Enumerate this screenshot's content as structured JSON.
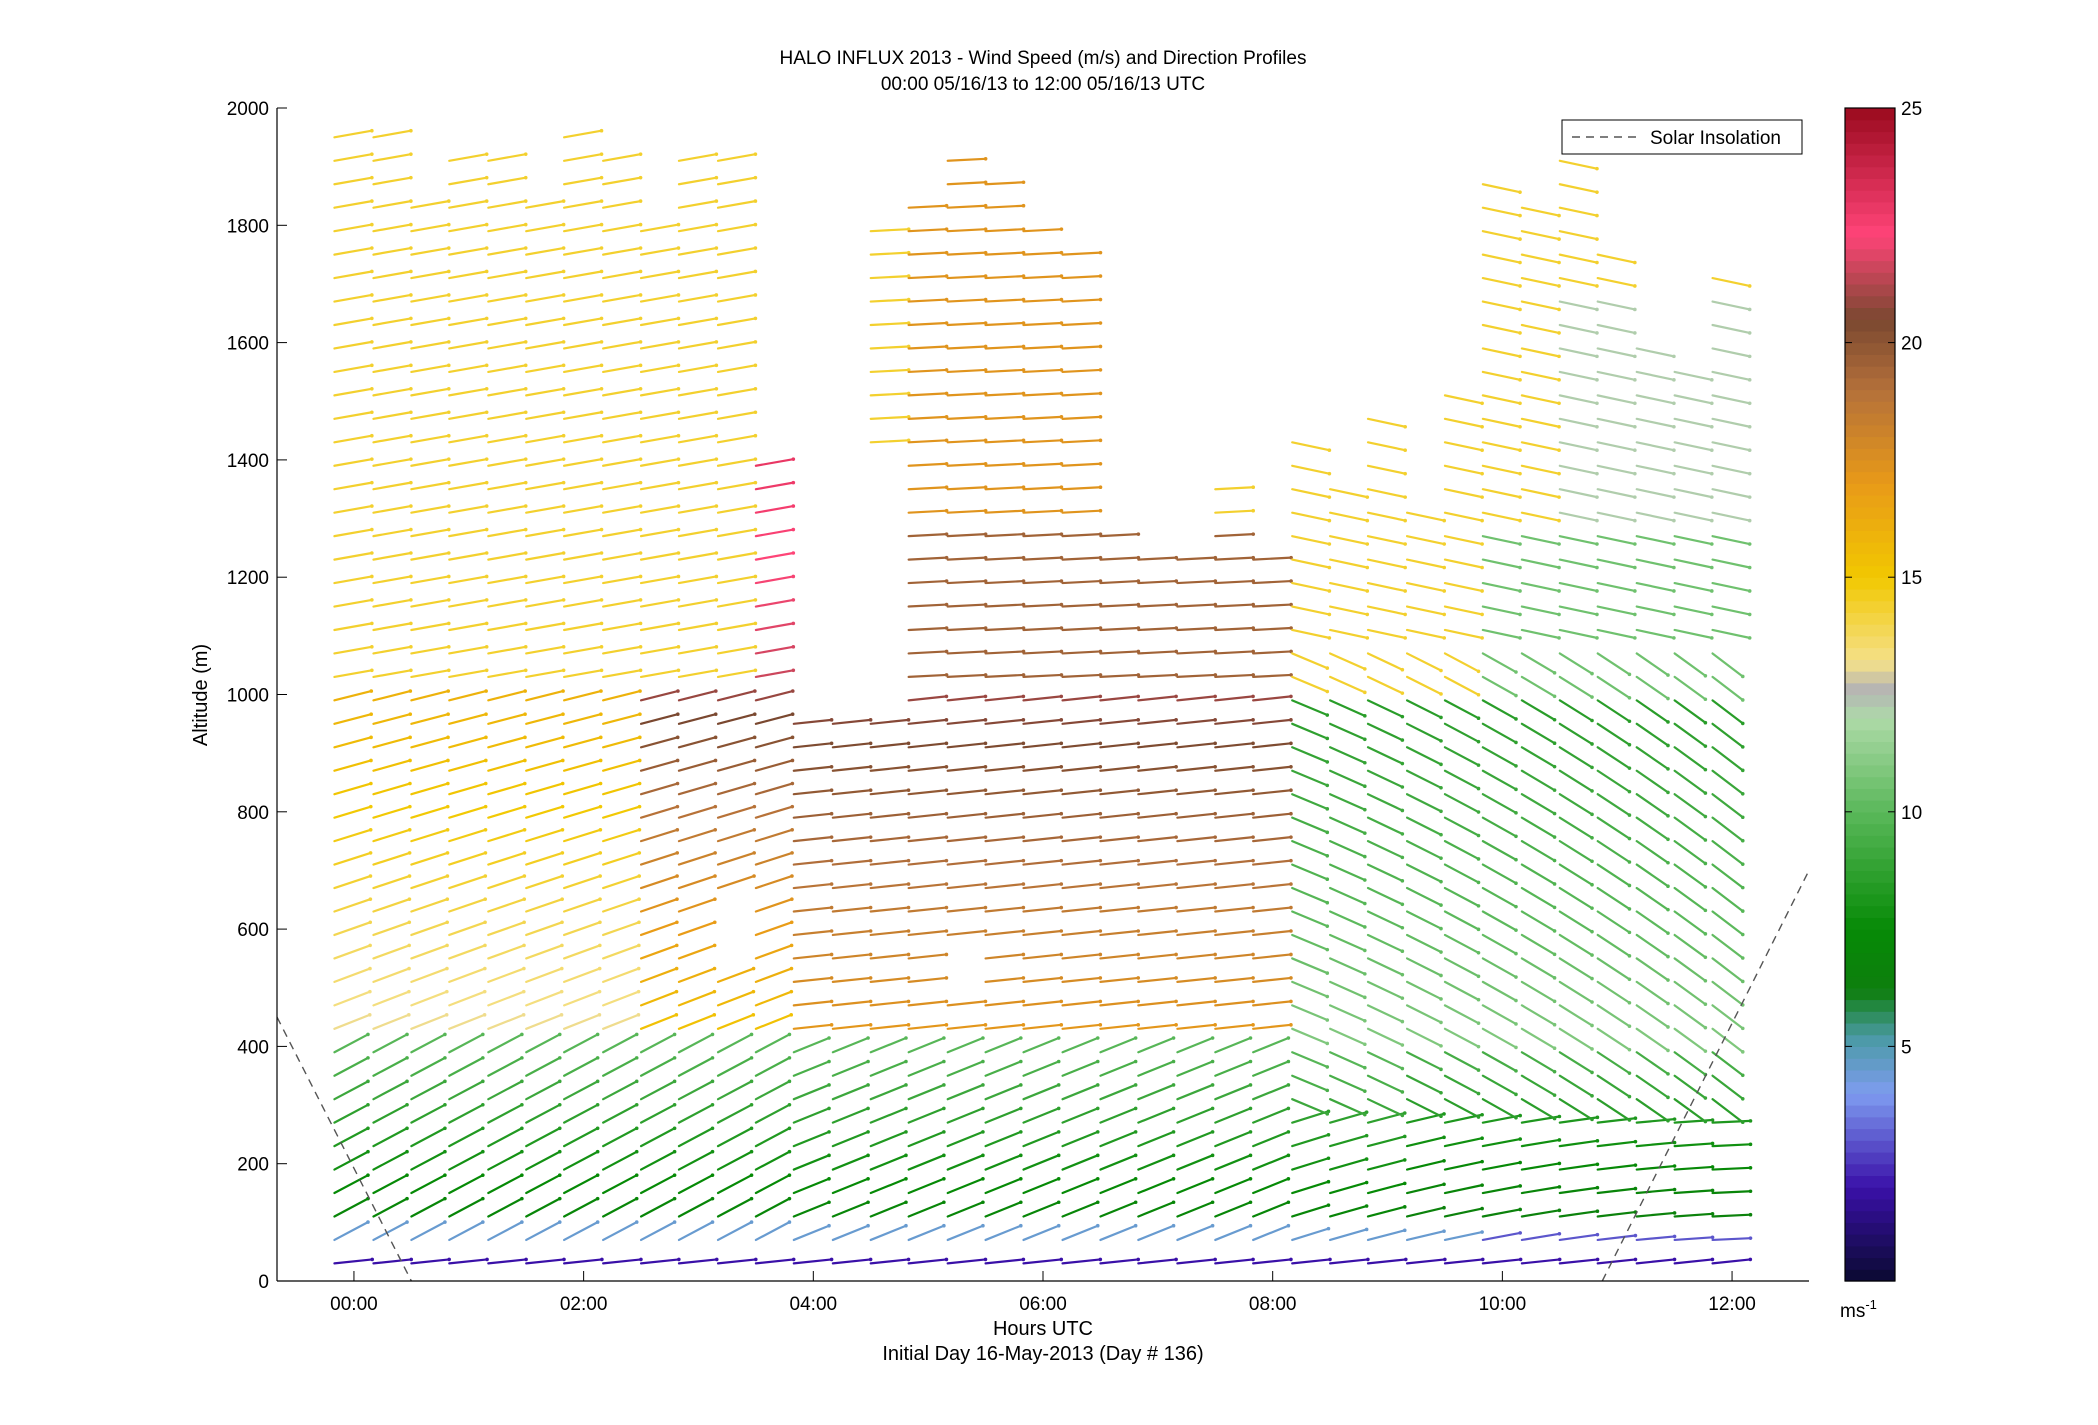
{
  "chart_data": {
    "type": "wind-barb profile",
    "title": "HALO INFLUX 2013 - Wind Speed (m/s) and Direction Profiles",
    "subtitle": "00:00 05/16/13 to 12:00 05/16/13  UTC",
    "xlabel": "Hours UTC",
    "xlabel2": "Initial Day 16-May-2013 (Day # 136)",
    "ylabel": "Altitude (m)",
    "xlim_hours": [
      -0.67,
      12.67
    ],
    "ylim": [
      0,
      2000
    ],
    "x_ticks": [
      {
        "value": 0,
        "label": "00:00"
      },
      {
        "value": 2,
        "label": "02:00"
      },
      {
        "value": 4,
        "label": "04:00"
      },
      {
        "value": 6,
        "label": "06:00"
      },
      {
        "value": 8,
        "label": "08:00"
      },
      {
        "value": 10,
        "label": "10:00"
      },
      {
        "value": 12,
        "label": "12:00"
      }
    ],
    "y_ticks": [
      0,
      200,
      400,
      600,
      800,
      1000,
      1200,
      1400,
      1600,
      1800,
      2000
    ],
    "y_tick_labels": [
      "0",
      "200",
      "400",
      "600",
      "800",
      "1000",
      "1200",
      "1400",
      "1600",
      "1800",
      "2000"
    ],
    "legend": {
      "label": "Solar Insolation",
      "position": "top-right",
      "line_style": "dashed",
      "color": "#555555"
    },
    "colorbar": {
      "range": [
        0,
        25
      ],
      "ticks": [
        5,
        10,
        15,
        20,
        25
      ],
      "tick_labels": [
        "5",
        "10",
        "15",
        "20",
        "25"
      ],
      "unit_label": "ms",
      "unit_exponent": "-1",
      "stops": [
        {
          "v": 0,
          "color": "#0a0a30"
        },
        {
          "v": 2,
          "color": "#3a10a8"
        },
        {
          "v": 4,
          "color": "#7e9cf0"
        },
        {
          "v": 5.2,
          "color": "#4a9aa4"
        },
        {
          "v": 6.2,
          "color": "#0e7e0e"
        },
        {
          "v": 7.5,
          "color": "#068a06"
        },
        {
          "v": 10,
          "color": "#5ab85a"
        },
        {
          "v": 12,
          "color": "#aedaa8"
        },
        {
          "v": 12.6,
          "color": "#b4b4b4"
        },
        {
          "v": 13.2,
          "color": "#f4e08a"
        },
        {
          "v": 15,
          "color": "#f2c800"
        },
        {
          "v": 17,
          "color": "#e89a18"
        },
        {
          "v": 19,
          "color": "#b4703a"
        },
        {
          "v": 20.5,
          "color": "#7a4830"
        },
        {
          "v": 22.3,
          "color": "#ff4478"
        },
        {
          "v": 25,
          "color": "#9a0a1e"
        }
      ]
    },
    "solar_insolation": {
      "segments": [
        [
          {
            "t": -0.67,
            "alt": 450
          },
          {
            "t": 0.5,
            "alt": 0
          }
        ],
        [
          {
            "t": 10.87,
            "alt": 0
          },
          {
            "t": 12.67,
            "alt": 700
          }
        ]
      ]
    },
    "barb_profile_times_hours": [
      -0.17,
      0.17,
      0.5,
      0.83,
      1.17,
      1.5,
      1.83,
      2.17,
      2.5,
      2.83,
      3.17,
      3.5,
      3.83,
      4.17,
      4.5,
      4.83,
      5.17,
      5.5,
      5.83,
      6.17,
      6.5,
      6.83,
      7.17,
      7.5,
      7.83,
      8.17,
      8.5,
      8.83,
      9.17,
      9.5,
      9.83,
      10.17,
      10.5,
      10.83,
      11.17,
      11.5,
      11.83
    ],
    "barb_altitude_step_m": 40,
    "profile_top_altitudes_m": [
      1960,
      1960,
      1850,
      1920,
      1920,
      1850,
      1960,
      1920,
      1790,
      1920,
      1920,
      1400,
      960,
      950,
      1790,
      1830,
      1920,
      1870,
      1790,
      1760,
      1290,
      1250,
      1250,
      1370,
      1250,
      1450,
      1370,
      1490,
      1330,
      1530,
      1880,
      1850,
      1920,
      1750,
      1620,
      1580,
      1710
    ],
    "data_gaps_m": [
      {
        "t_from": 4.0,
        "t_to": 4.6,
        "alt_from": 960,
        "alt_to": 1400
      },
      {
        "t_from": 3.05,
        "t_to": 3.35,
        "alt_from": 520,
        "alt_to": 650
      },
      {
        "t_from": 4.9,
        "t_to": 5.3,
        "alt_from": 500,
        "alt_to": 560
      }
    ],
    "speed_profile_m_s": {
      "surface_0_40m": 2.0,
      "near_surface_40_100m": 4.5,
      "boundary_layer_100_400m": "7 to 10",
      "mid_400_900m_early": "13 to 16",
      "mid_500_1000m_0400_0800": "17 to 22",
      "mid_500_1000m_after_0800": "8 to 11",
      "upper_1000_2000m": "14 to 16",
      "peak_near_3.5h_1200_1400m": 23
    },
    "wind_direction_summary_deg_to": {
      "early_low_levels": 20,
      "early_upper_levels": 10,
      "midday_mid_levels": 0,
      "late_mid_levels": -25
    }
  }
}
